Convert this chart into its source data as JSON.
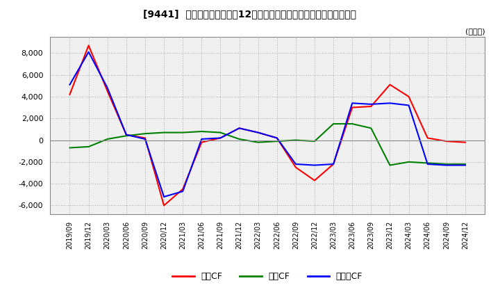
{
  "title": "[9441]  キャッシュフローの12か月移動合計の対前年同期増減額の推移",
  "ylabel": "(百万円)",
  "ylim": [
    -6800,
    9500
  ],
  "yticks": [
    -6000,
    -4000,
    -2000,
    0,
    2000,
    4000,
    6000,
    8000
  ],
  "legend": [
    "営業CF",
    "投資CF",
    "フリーCF"
  ],
  "legend_colors": [
    "#ff0000",
    "#008000",
    "#0000ff"
  ],
  "dates": [
    "2019/09",
    "2019/12",
    "2020/03",
    "2020/06",
    "2020/09",
    "2020/12",
    "2021/03",
    "2021/06",
    "2021/09",
    "2021/12",
    "2022/03",
    "2022/06",
    "2022/09",
    "2022/12",
    "2023/03",
    "2023/06",
    "2023/09",
    "2023/12",
    "2024/03",
    "2024/06",
    "2024/09",
    "2024/12"
  ],
  "operating_cf": [
    4200,
    8700,
    4500,
    500,
    200,
    -6000,
    -4500,
    -200,
    200,
    1100,
    700,
    200,
    -2500,
    -3700,
    -2200,
    3000,
    3100,
    5100,
    4000,
    200,
    -100,
    -200
  ],
  "investing_cf": [
    -700,
    -600,
    100,
    400,
    600,
    700,
    700,
    800,
    700,
    100,
    -200,
    -100,
    0,
    -100,
    1500,
    1500,
    1100,
    -2300,
    -2000,
    -2100,
    -2200,
    -2200
  ],
  "free_cf": [
    5100,
    8100,
    4800,
    500,
    100,
    -5200,
    -4700,
    100,
    200,
    1100,
    700,
    200,
    -2200,
    -2300,
    -2200,
    3400,
    3300,
    3400,
    3200,
    -2200,
    -2300,
    -2300
  ],
  "bg_color": "#ffffff",
  "plot_bg_color": "#f0f0f0",
  "grid_color": "#aaaaaa",
  "line_width": 1.5
}
